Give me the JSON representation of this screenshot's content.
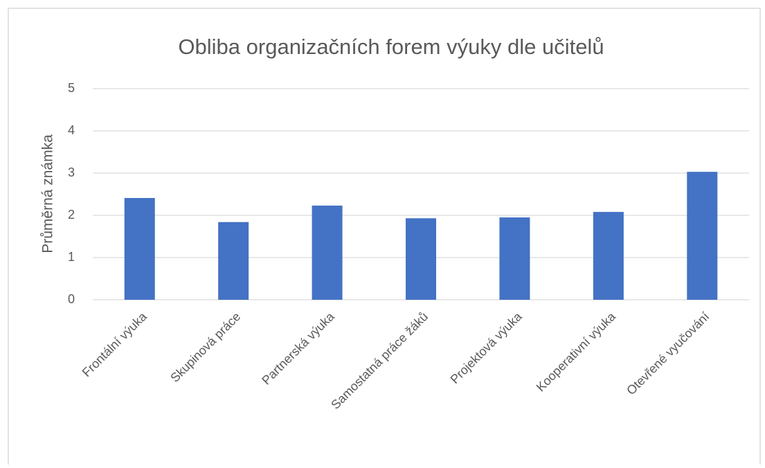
{
  "chart_data": {
    "type": "bar",
    "title": "Obliba organizačních forem výuky dle učitelů",
    "y_label": "Průměrná známka",
    "categories": [
      "Frontální výuka",
      "Skupinová práce",
      "Partnerská výuka",
      "Samostatná práce žáků",
      "Projektová výuka",
      "Kooperativní výuka",
      "Otevřené vyučování"
    ],
    "values": [
      2.41,
      1.84,
      2.23,
      1.93,
      1.95,
      2.08,
      3.03
    ],
    "color": "#4472c4",
    "ylim": [
      0,
      5
    ],
    "yticks": [
      0,
      1,
      2,
      3,
      4,
      5
    ],
    "grid": true
  }
}
